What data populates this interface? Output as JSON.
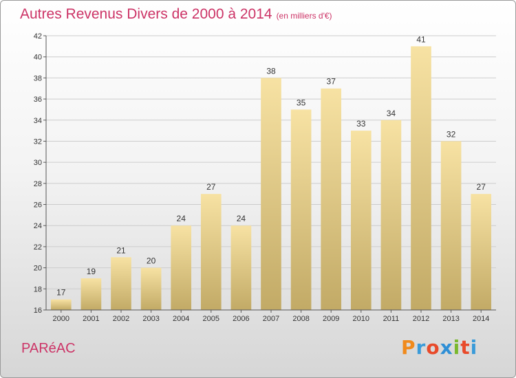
{
  "title": "Autres Revenus Divers de 2000 à 2014",
  "subtitle": "(en milliers d'€)",
  "footer_name": "PARéAC",
  "brand": {
    "letters": [
      "P",
      "r",
      "o",
      "x",
      "i",
      "t",
      "i"
    ],
    "colors": [
      "#f08a1c",
      "#3a9bd9",
      "#e84a2a",
      "#2f8fd6",
      "#7ab82e",
      "#e84a2a",
      "#3a9bd9"
    ]
  },
  "colors": {
    "title": "#cc3366",
    "bar_light": "#f7e2a3",
    "bar_dark": "#c2aa66",
    "grid": "#cccccc",
    "axis": "#555555"
  },
  "chart_data": {
    "type": "bar",
    "categories": [
      "2000",
      "2001",
      "2002",
      "2003",
      "2004",
      "2005",
      "2006",
      "2007",
      "2008",
      "2009",
      "2010",
      "2011",
      "2012",
      "2013",
      "2014"
    ],
    "values": [
      17,
      19,
      21,
      20,
      24,
      27,
      24,
      38,
      35,
      37,
      33,
      34,
      41,
      32,
      27
    ],
    "ylim": [
      16,
      42
    ],
    "yticks": [
      16,
      18,
      20,
      22,
      24,
      26,
      28,
      30,
      32,
      34,
      36,
      38,
      40,
      42
    ],
    "grid": true,
    "xlabel": "",
    "ylabel": ""
  }
}
